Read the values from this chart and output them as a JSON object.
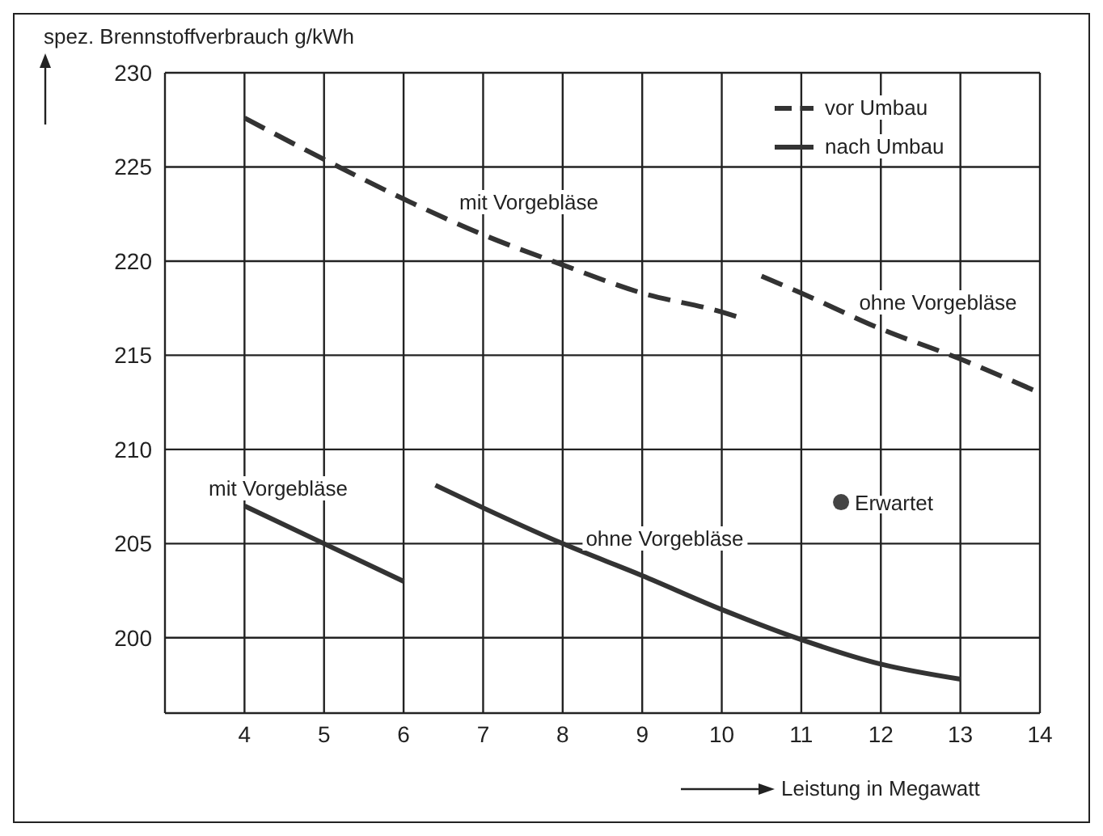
{
  "chart_data": {
    "type": "line",
    "xlabel": "Leistung in Megawatt",
    "ylabel": "spez. Brennstoffverbrauch g/kWh",
    "xlim": [
      3,
      14
    ],
    "xticks": [
      {
        "value": 3,
        "label": null
      },
      4,
      5,
      6,
      7,
      8,
      9,
      10,
      11,
      12,
      13,
      14
    ],
    "ylim": [
      196,
      230
    ],
    "yticks": [
      200,
      205,
      210,
      215,
      220,
      225,
      230
    ],
    "grid": true,
    "legend": "top right",
    "marker": "none",
    "series": [
      {
        "name": "vor Umbau",
        "color": "#333333",
        "line_style": "dashed",
        "x": [
          4,
          5,
          6,
          7,
          8,
          9,
          10,
          10.3,
          10.4,
          10.5,
          11,
          12,
          13,
          14
        ],
        "values": [
          227.6,
          225.4,
          223.3,
          221.4,
          219.8,
          218.3,
          217.3,
          216.9,
          null,
          219.2,
          218.3,
          216.4,
          214.8,
          213
        ]
      },
      {
        "name": "nach Umbau",
        "color": "#333333",
        "line_style": "solid",
        "x": [
          4,
          5,
          6,
          6.2,
          6.4,
          7,
          8,
          9,
          10,
          11,
          12,
          13
        ],
        "values": [
          207,
          205,
          203,
          null,
          208.1,
          206.9,
          205,
          203.3,
          201.5,
          199.9,
          198.6,
          197.8
        ]
      },
      {
        "name": "Erwartet",
        "type": "scatter",
        "marker": "circle",
        "color": "#444444",
        "x": [
          11.5
        ],
        "values": [
          207.2
        ]
      }
    ],
    "annotations": [
      "mit Vorgebläse",
      "ohne Vorgebläse",
      "mit Vorgebläse",
      "ohne Vorgebläse"
    ]
  }
}
